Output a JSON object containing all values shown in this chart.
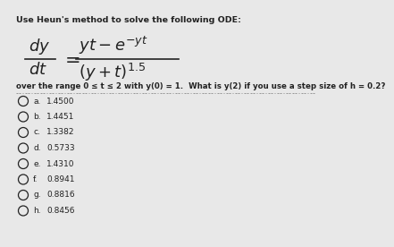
{
  "title_line": "Use Heun's method to solve the following ODE:",
  "body_text": "over the range 0 ≤ t ≤ 2 with y(0) = 1.  What is y(2) if you use a step size of h = 0.2?",
  "options": [
    {
      "label": "a.",
      "value": "1.4500"
    },
    {
      "label": "b.",
      "value": "1.4451"
    },
    {
      "label": "c.",
      "value": "1.3382"
    },
    {
      "label": "d.",
      "value": "0.5733"
    },
    {
      "label": "e.",
      "value": "1.4310"
    },
    {
      "label": "f.",
      "value": "0.8941"
    },
    {
      "label": "g.",
      "value": "0.8816"
    },
    {
      "label": "h.",
      "value": "0.8456"
    }
  ],
  "bg_color": "#e8e8e8",
  "text_color": "#222222",
  "title_fontsize": 6.8,
  "body_fontsize": 6.2,
  "option_fontsize": 6.5,
  "eq_num_fontsize": 13,
  "eq_denom_fontsize": 13,
  "eq_small_fontsize": 9
}
